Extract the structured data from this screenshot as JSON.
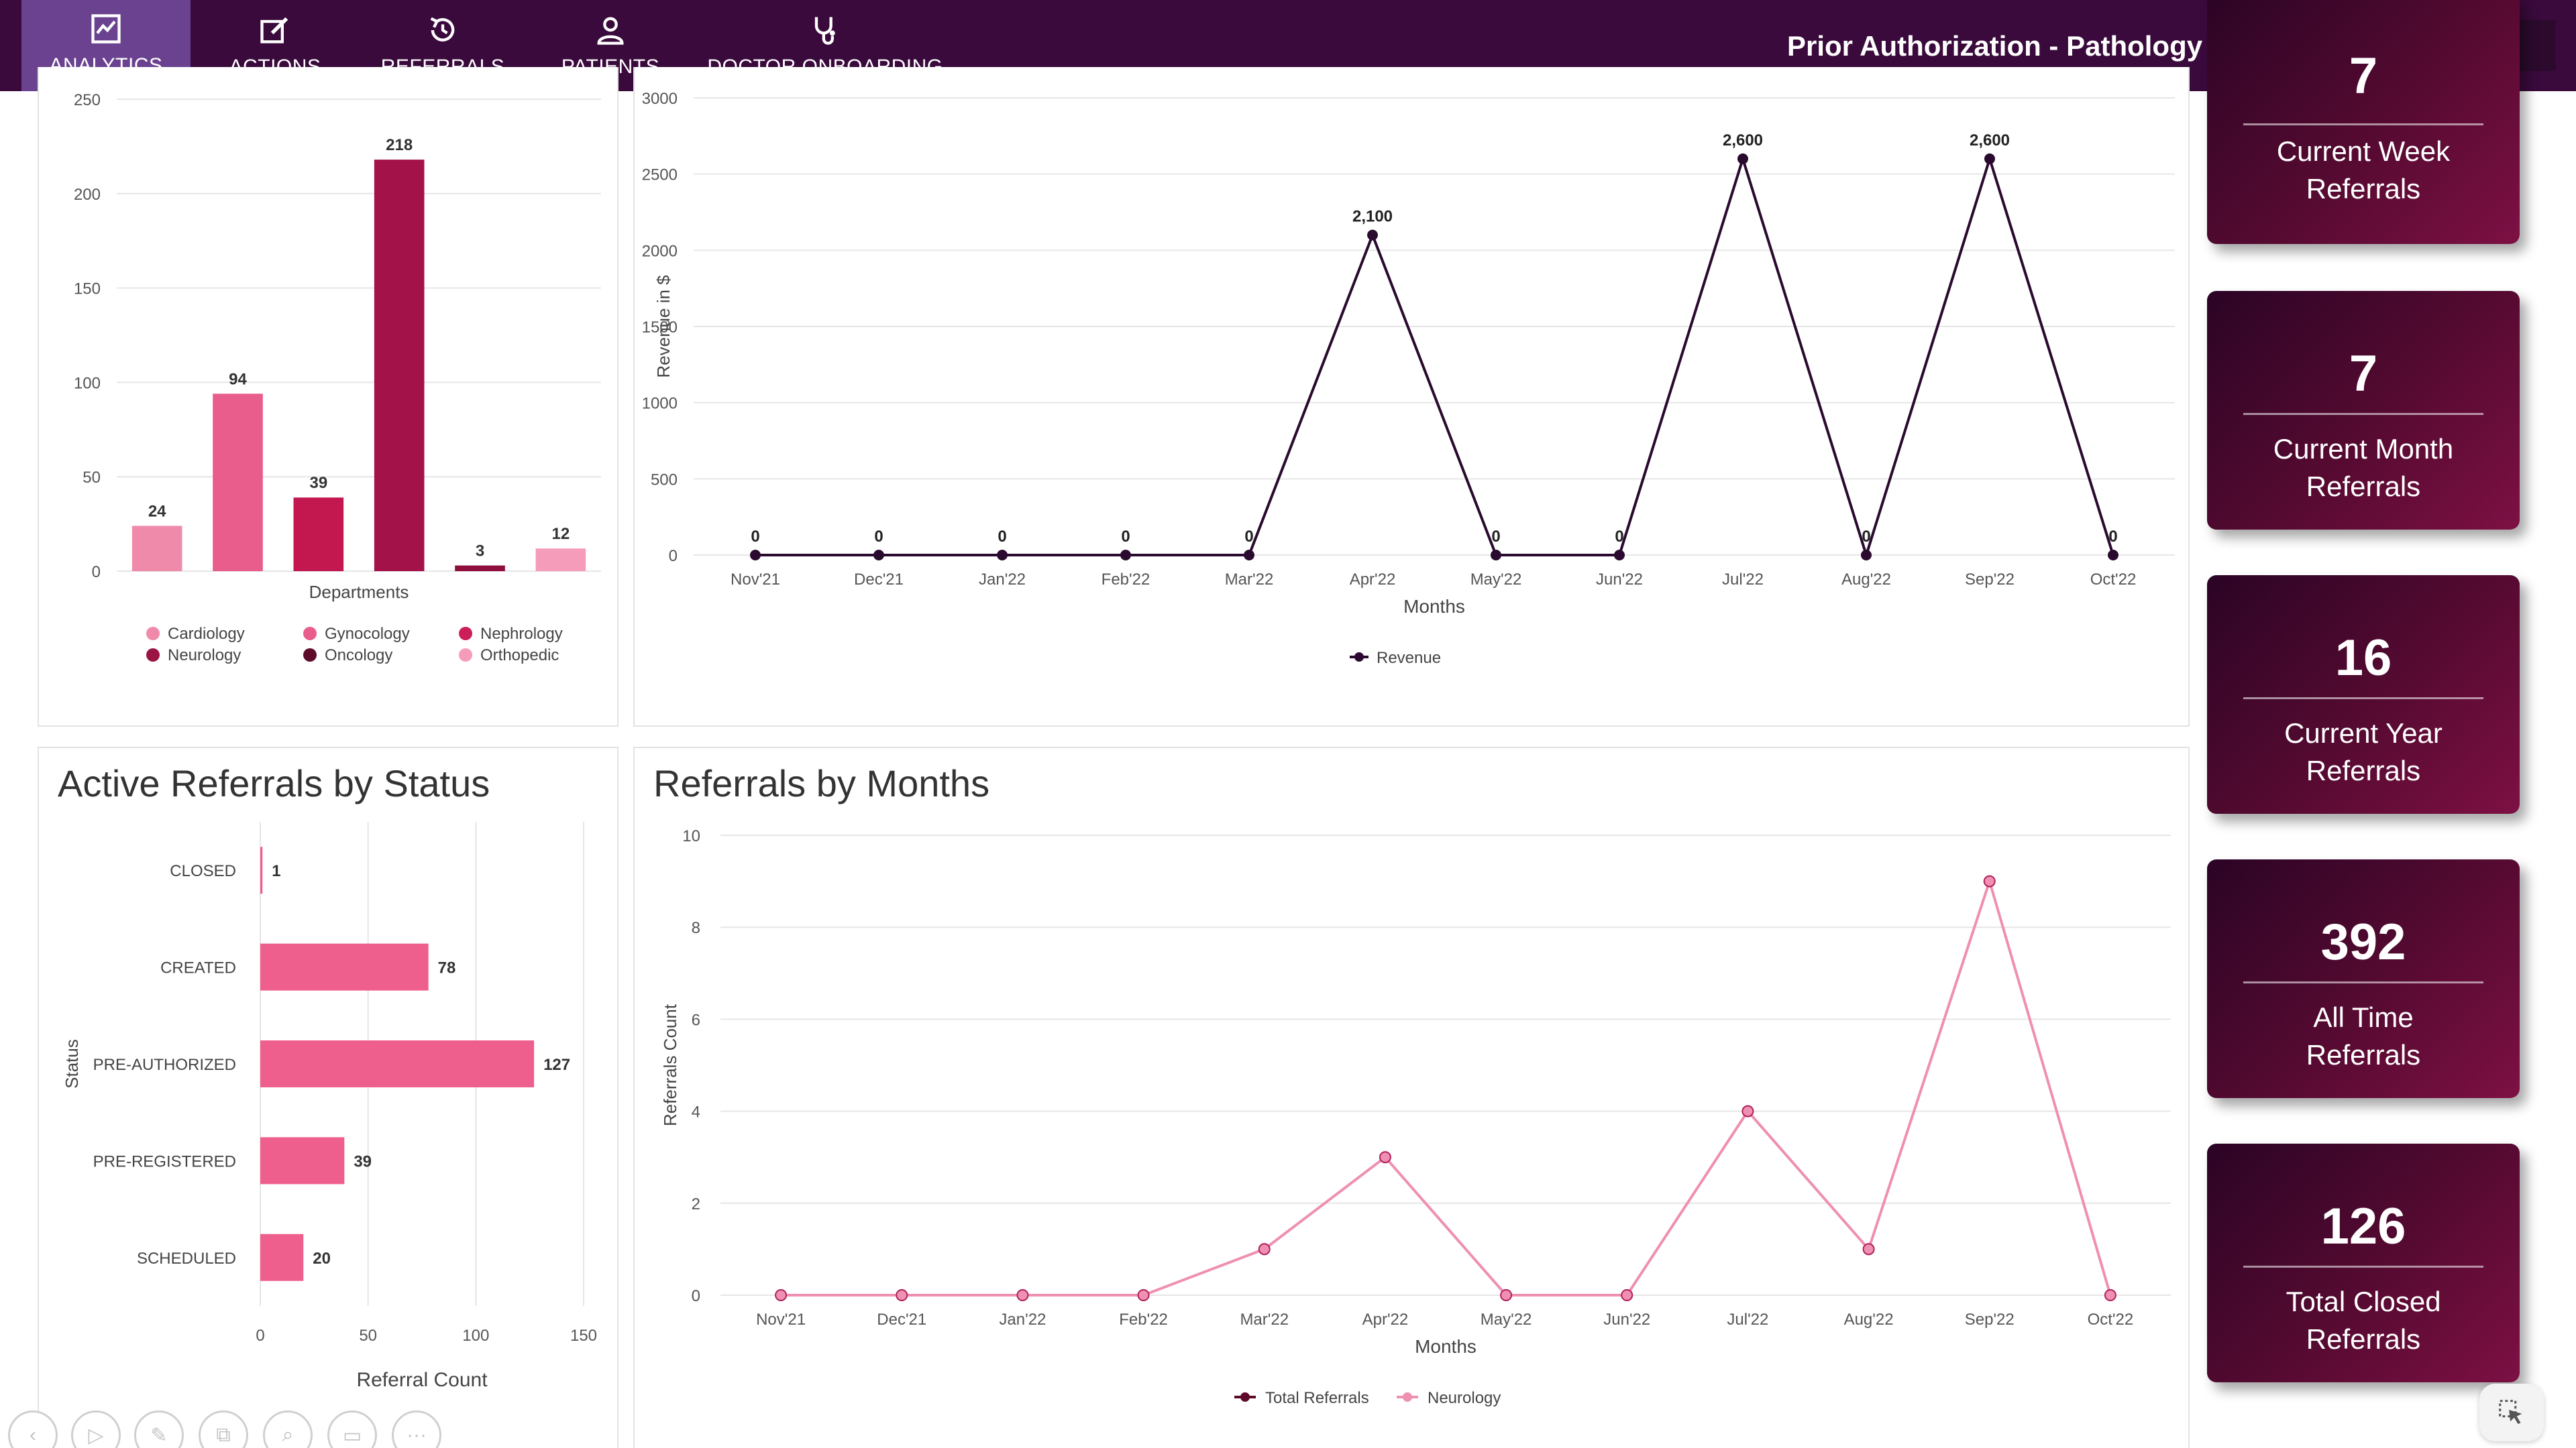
{
  "nav": {
    "items": [
      {
        "label": "ANALYTICS",
        "icon": "chart-line-icon",
        "active": true
      },
      {
        "label": "ACTIONS",
        "icon": "edit-icon",
        "active": false
      },
      {
        "label": "REFERRALS",
        "icon": "history-icon",
        "active": false
      },
      {
        "label": "PATIENTS",
        "icon": "user-icon",
        "active": false
      },
      {
        "label": "DOCTOR ONBOARDING",
        "icon": "stethoscope-icon",
        "active": false
      }
    ],
    "context": "Prior Authorization - Pathology",
    "logo": "PRIOR AUTHORIZATION",
    "colors": {
      "bar": "#3a0a3c",
      "active": "#6a4290"
    }
  },
  "panels": {
    "status_title": "Active Referrals by Status",
    "months_title": "Referrals by Months"
  },
  "kpis": [
    {
      "value": "7",
      "label_line1": "Current Week",
      "label_line2": "Referrals"
    },
    {
      "value": "7",
      "label_line1": "Current Month",
      "label_line2": "Referrals"
    },
    {
      "value": "16",
      "label_line1": "Current Year",
      "label_line2": "Referrals"
    },
    {
      "value": "392",
      "label_line1": "All Time",
      "label_line2": "Referrals"
    },
    {
      "value": "126",
      "label_line1": "Total Closed",
      "label_line2": "Referrals"
    }
  ],
  "toolbar": {
    "icons": [
      "back-icon",
      "play-icon",
      "pen-icon",
      "copy-icon",
      "zoom-icon",
      "display-icon",
      "more-icon"
    ]
  },
  "chart_data": [
    {
      "type": "bar",
      "title": "",
      "xlabel": "Departments",
      "ylabel": "",
      "ylim": [
        0,
        250
      ],
      "yticks": [
        0,
        50,
        100,
        150,
        200,
        250
      ],
      "categories": [
        "Cardiology",
        "Gynocology",
        "Oncology",
        "Nephrology",
        "Neurology",
        "Orthopedic"
      ],
      "values": [
        24,
        94,
        39,
        218,
        3,
        12
      ],
      "colors": [
        "#f08aaa",
        "#e85d8c",
        "#c2174f",
        "#a3134a",
        "#8e0e3e",
        "#f59cbb"
      ],
      "legend": [
        {
          "name": "Cardiology",
          "color": "#f08aaa"
        },
        {
          "name": "Gynocology",
          "color": "#e85d8c"
        },
        {
          "name": "Nephrology",
          "color": "#cc1f58"
        },
        {
          "name": "Neurology",
          "color": "#9c1443"
        },
        {
          "name": "Oncology",
          "color": "#5e0a2a"
        },
        {
          "name": "Orthopedic",
          "color": "#f59cbb"
        }
      ],
      "legend_position": "bottom",
      "grid": true
    },
    {
      "type": "line",
      "title": "",
      "xlabel": "Months",
      "ylabel": "Revenue in $",
      "ylim": [
        0,
        3000
      ],
      "yticks": [
        0,
        500,
        1000,
        1500,
        2000,
        2500,
        3000
      ],
      "categories": [
        "Nov'21",
        "Dec'21",
        "Jan'22",
        "Feb'22",
        "Mar'22",
        "Apr'22",
        "May'22",
        "Jun'22",
        "Jul'22",
        "Aug'22",
        "Sep'22",
        "Oct'22"
      ],
      "series": [
        {
          "name": "Revenue",
          "color": "#2a0a2e",
          "values": [
            0,
            0,
            0,
            0,
            0,
            2100,
            0,
            0,
            2600,
            0,
            2600,
            0
          ],
          "labels": [
            "0",
            "0",
            "0",
            "0",
            "0",
            "2,100",
            "0",
            "0",
            "2,600",
            "0",
            "2,600",
            "0"
          ]
        }
      ],
      "legend_position": "bottom",
      "grid": true
    },
    {
      "type": "bar",
      "orientation": "horizontal",
      "title": "Active Referrals by Status",
      "xlabel": "Referral Count",
      "ylabel": "Status",
      "xlim": [
        0,
        150
      ],
      "xticks": [
        0,
        50,
        100,
        150
      ],
      "categories": [
        "CLOSED",
        "CREATED",
        "PRE-AUTHORIZED",
        "PRE-REGISTERED",
        "SCHEDULED"
      ],
      "values": [
        1,
        78,
        127,
        39,
        20
      ],
      "color": "#ee5f8d",
      "grid": true
    },
    {
      "type": "line",
      "title": "Referrals by Months",
      "xlabel": "Months",
      "ylabel": "Referrals Count",
      "ylim": [
        0,
        10
      ],
      "yticks": [
        0,
        2,
        4,
        6,
        8,
        10
      ],
      "categories": [
        "Nov'21",
        "Dec'21",
        "Jan'22",
        "Feb'22",
        "Mar'22",
        "Apr'22",
        "May'22",
        "Jun'22",
        "Jul'22",
        "Aug'22",
        "Sep'22",
        "Oct'22"
      ],
      "series": [
        {
          "name": "Total Referrals",
          "color": "#5e0a2a",
          "values": [
            0,
            0,
            0,
            0,
            1,
            3,
            0,
            0,
            4,
            1,
            9,
            0
          ]
        },
        {
          "name": "Neurology",
          "color": "#ef8fb2",
          "values": [
            0,
            0,
            0,
            0,
            1,
            3,
            0,
            0,
            4,
            1,
            9,
            0
          ]
        }
      ],
      "legend_position": "bottom",
      "grid": true
    }
  ]
}
